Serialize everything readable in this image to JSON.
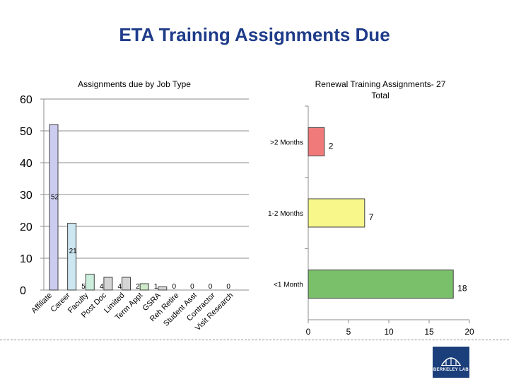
{
  "page": {
    "title": "ETA Training Assignments Due"
  },
  "logo": {
    "text": "BERKELEY LAB"
  },
  "chart_data": [
    {
      "type": "bar",
      "title": "Assignments due by Job Type",
      "categories": [
        "Affiliate",
        "Career",
        "Faculty",
        "Post Doc",
        "Limited",
        "Term Appt",
        "GSRA",
        "Reh Retire",
        "Student Asst",
        "Contractor",
        "Visit Research"
      ],
      "values": [
        52,
        21,
        5,
        4,
        4,
        2,
        1,
        0,
        0,
        0,
        0
      ],
      "bar_colors": [
        "#ccccf0",
        "#cce6f2",
        "#cceedd",
        "#d4d4d4",
        "#d4d4d4",
        "#cdebc8",
        "#d4d4d4",
        "#ffffff",
        "#ffffff",
        "#ffffff",
        "#ffffff"
      ],
      "ylim": [
        0,
        60
      ],
      "yticks": [
        0,
        10,
        20,
        30,
        40,
        50,
        60
      ],
      "grid": true
    },
    {
      "type": "bar",
      "orientation": "horizontal",
      "title": "Renewal Training Assignments- 27 Total",
      "title_lines": [
        "Renewal Training Assignments- 27",
        "Total"
      ],
      "categories": [
        ">2 Months",
        "1-2 Months",
        "<1 Month"
      ],
      "values": [
        2,
        7,
        18
      ],
      "bar_colors": [
        "#f07a7a",
        "#f7f78a",
        "#7abf6a"
      ],
      "xlim": [
        0,
        20
      ],
      "xticks": [
        0,
        5,
        10,
        15,
        20
      ],
      "grid": false
    }
  ]
}
